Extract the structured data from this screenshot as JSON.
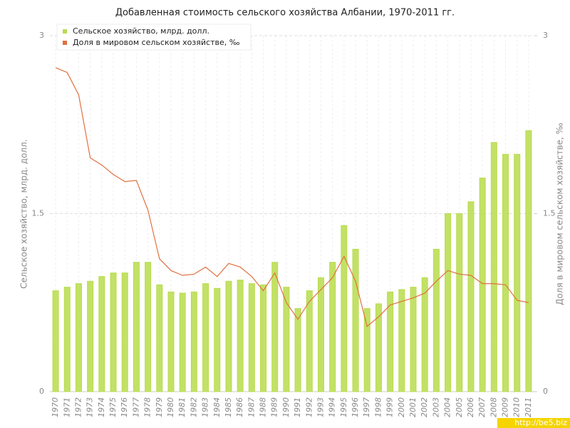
{
  "chart_data": {
    "type": "bar_line",
    "title": "Добавленная стоимость сельского хозяйства Албании, 1970-2011 гг.",
    "y_label": "Сельское хозяйство, млрд. долл.",
    "y2_label": "Доля в мировом сельском хозяйстве, ‰",
    "watermark": "http://be5.biz",
    "categories": [
      "1970",
      "1971",
      "1972",
      "1973",
      "1974",
      "1975",
      "1976",
      "1977",
      "1978",
      "1979",
      "1980",
      "1981",
      "1982",
      "1983",
      "1984",
      "1985",
      "1986",
      "1987",
      "1988",
      "1989",
      "1990",
      "1991",
      "1992",
      "1993",
      "1994",
      "1995",
      "1996",
      "1997",
      "1998",
      "1999",
      "2000",
      "2001",
      "2002",
      "2003",
      "2004",
      "2005",
      "2006",
      "2007",
      "2008",
      "2009",
      "2010",
      "2011"
    ],
    "series": [
      {
        "name": "Сельское хозяйство, млрд. долл.",
        "type": "bar",
        "color": "#b8dc4c",
        "values": [
          0.85,
          0.88,
          0.91,
          0.93,
          0.97,
          1.0,
          1.0,
          1.09,
          1.09,
          0.9,
          0.84,
          0.83,
          0.84,
          0.91,
          0.87,
          0.93,
          0.94,
          0.91,
          0.9,
          1.09,
          0.88,
          0.7,
          0.85,
          0.96,
          1.09,
          1.4,
          1.2,
          0.7,
          0.74,
          0.84,
          0.86,
          0.88,
          0.96,
          1.2,
          1.5,
          1.5,
          1.6,
          1.8,
          2.1,
          2.0,
          2.0,
          2.2
        ]
      },
      {
        "name": "Доля в мировом сельском хозяйстве, ‰",
        "type": "line",
        "axis": "y2",
        "color": "#e07040",
        "values": [
          2.73,
          2.69,
          2.5,
          1.97,
          1.91,
          1.83,
          1.77,
          1.78,
          1.53,
          1.12,
          1.02,
          0.98,
          0.99,
          1.05,
          0.97,
          1.08,
          1.05,
          0.97,
          0.85,
          1.0,
          0.75,
          0.61,
          0.76,
          0.86,
          0.96,
          1.14,
          0.93,
          0.55,
          0.63,
          0.73,
          0.76,
          0.79,
          0.83,
          0.93,
          1.02,
          0.99,
          0.98,
          0.91,
          0.91,
          0.9,
          0.77,
          0.75
        ]
      }
    ],
    "ylim": [
      0,
      3
    ],
    "yticks": [
      0,
      1.5,
      3
    ],
    "y2lim": [
      0,
      3
    ],
    "y2ticks": [
      0,
      1.5,
      3
    ],
    "grid": true,
    "legend": "top-left"
  }
}
